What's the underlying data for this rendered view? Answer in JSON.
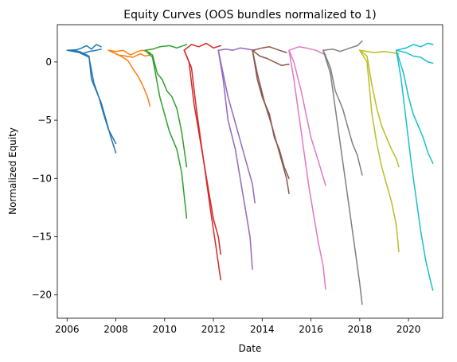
{
  "chart_data": {
    "type": "line",
    "title": "Equity Curves (OOS bundles normalized to 1)",
    "xlabel": "Date",
    "ylabel": "Normalized Equity",
    "xlim": [
      2005.6,
      2021.4
    ],
    "ylim": [
      -22,
      3.2
    ],
    "xticks": [
      {
        "value": 2006,
        "label": "2006"
      },
      {
        "value": 2008,
        "label": "2008"
      },
      {
        "value": 2010,
        "label": "2010"
      },
      {
        "value": 2012,
        "label": "2012"
      },
      {
        "value": 2014,
        "label": "2014"
      },
      {
        "value": 2016,
        "label": "2016"
      },
      {
        "value": 2018,
        "label": "2018"
      },
      {
        "value": 2020,
        "label": "2020"
      }
    ],
    "yticks": [
      {
        "value": 0,
        "label": "0"
      },
      {
        "value": -5,
        "label": "−5"
      },
      {
        "value": -10,
        "label": "−10"
      },
      {
        "value": -15,
        "label": "−15"
      },
      {
        "value": -20,
        "label": "−20"
      }
    ],
    "grid": false,
    "legend": "none",
    "groups": [
      {
        "color": "#1f77b4",
        "lines": [
          {
            "x": [
              2006.0,
              2006.4,
              2006.6,
              2006.8,
              2007.0,
              2007.2,
              2007.4
            ],
            "y": [
              1.0,
              1.05,
              1.2,
              1.4,
              1.1,
              1.5,
              1.3
            ]
          },
          {
            "x": [
              2006.0,
              2006.4,
              2006.6,
              2006.9,
              2007.2,
              2007.4
            ],
            "y": [
              1.0,
              0.95,
              0.7,
              0.9,
              1.0,
              1.1
            ]
          },
          {
            "x": [
              2006.0,
              2006.5,
              2006.9,
              2007.0,
              2007.2,
              2007.4,
              2007.6,
              2007.8,
              2008.0
            ],
            "y": [
              1.0,
              0.9,
              0.5,
              -1.5,
              -2.5,
              -3.5,
              -5.0,
              -6.5,
              -7.8
            ]
          },
          {
            "x": [
              2006.0,
              2006.5,
              2006.9,
              2007.1,
              2007.3,
              2007.5,
              2007.7,
              2008.0
            ],
            "y": [
              1.0,
              0.8,
              0.4,
              -1.8,
              -3.0,
              -4.5,
              -5.8,
              -7.0
            ]
          }
        ]
      },
      {
        "color": "#ff7f0e",
        "lines": [
          {
            "x": [
              2007.7,
              2008.0,
              2008.3,
              2008.6,
              2008.9,
              2009.1,
              2009.4
            ],
            "y": [
              1.0,
              0.9,
              1.0,
              0.6,
              0.9,
              1.0,
              0.8
            ]
          },
          {
            "x": [
              2007.7,
              2008.1,
              2008.4,
              2008.7,
              2009.0,
              2009.2,
              2009.4
            ],
            "y": [
              1.0,
              0.6,
              0.5,
              0.4,
              0.7,
              0.5,
              0.6
            ]
          },
          {
            "x": [
              2007.7,
              2008.2,
              2008.5,
              2008.7,
              2008.9,
              2009.1,
              2009.3,
              2009.4
            ],
            "y": [
              1.0,
              0.5,
              0.1,
              -0.6,
              -1.2,
              -2.0,
              -3.0,
              -3.8
            ]
          }
        ]
      },
      {
        "color": "#2ca02c",
        "lines": [
          {
            "x": [
              2009.2,
              2009.5,
              2009.8,
              2010.2,
              2010.5,
              2010.9
            ],
            "y": [
              1.0,
              1.1,
              1.3,
              1.4,
              1.2,
              1.5
            ]
          },
          {
            "x": [
              2009.2,
              2009.5,
              2009.7,
              2009.9,
              2010.1,
              2010.3,
              2010.5,
              2010.7,
              2010.9
            ],
            "y": [
              1.0,
              0.6,
              -1.0,
              -1.5,
              -2.5,
              -3.0,
              -4.0,
              -6.0,
              -9.0
            ]
          },
          {
            "x": [
              2009.2,
              2009.5,
              2009.8,
              2010.0,
              2010.2,
              2010.5,
              2010.7,
              2010.9
            ],
            "y": [
              1.0,
              0.4,
              -3.0,
              -4.5,
              -6.0,
              -7.5,
              -9.5,
              -13.4
            ]
          }
        ]
      },
      {
        "color": "#d62728",
        "lines": [
          {
            "x": [
              2010.8,
              2011.1,
              2011.4,
              2011.7,
              2012.0,
              2012.3
            ],
            "y": [
              1.0,
              1.5,
              1.3,
              1.6,
              1.2,
              1.4
            ]
          },
          {
            "x": [
              2010.8,
              2011.0,
              2011.2,
              2011.4,
              2011.6,
              2011.8,
              2012.0,
              2012.2,
              2012.3
            ],
            "y": [
              1.0,
              0.0,
              -3.5,
              -6.0,
              -8.5,
              -11.0,
              -13.5,
              -15.0,
              -16.5
            ]
          },
          {
            "x": [
              2010.8,
              2011.1,
              2011.3,
              2011.5,
              2011.7,
              2011.9,
              2012.1,
              2012.3
            ],
            "y": [
              1.0,
              -0.5,
              -4.0,
              -7.0,
              -10.0,
              -13.0,
              -15.8,
              -18.7
            ]
          }
        ]
      },
      {
        "color": "#9467bd",
        "lines": [
          {
            "x": [
              2012.2,
              2012.5,
              2012.8,
              2013.1,
              2013.4,
              2013.7
            ],
            "y": [
              1.0,
              1.1,
              1.0,
              1.2,
              1.1,
              1.0
            ]
          },
          {
            "x": [
              2012.2,
              2012.4,
              2012.6,
              2012.8,
              2013.0,
              2013.2,
              2013.4,
              2013.6,
              2013.7
            ],
            "y": [
              1.0,
              -1.0,
              -3.0,
              -4.5,
              -6.0,
              -7.5,
              -9.0,
              -10.5,
              -12.1
            ]
          },
          {
            "x": [
              2012.2,
              2012.4,
              2012.6,
              2012.9,
              2013.1,
              2013.3,
              2013.5,
              2013.6
            ],
            "y": [
              1.0,
              -1.5,
              -5.0,
              -7.5,
              -10.0,
              -12.5,
              -15.0,
              -17.8
            ]
          }
        ]
      },
      {
        "color": "#8c564b",
        "lines": [
          {
            "x": [
              2013.6,
              2014.0,
              2014.3,
              2014.7,
              2015.0
            ],
            "y": [
              1.0,
              1.2,
              1.3,
              1.0,
              0.8
            ]
          },
          {
            "x": [
              2013.6,
              2013.9,
              2014.2,
              2014.5,
              2014.8,
              2015.1
            ],
            "y": [
              1.0,
              0.5,
              0.3,
              0.0,
              -0.3,
              -0.2
            ]
          },
          {
            "x": [
              2013.6,
              2013.8,
              2014.0,
              2014.3,
              2014.5,
              2014.7,
              2014.9,
              2015.1
            ],
            "y": [
              1.0,
              -1.5,
              -3.0,
              -4.5,
              -6.5,
              -7.5,
              -9.0,
              -10.0
            ]
          },
          {
            "x": [
              2013.6,
              2013.8,
              2014.1,
              2014.4,
              2014.6,
              2014.8,
              2015.0,
              2015.1
            ],
            "y": [
              1.0,
              -1.0,
              -3.5,
              -5.5,
              -7.0,
              -8.5,
              -10.0,
              -11.3
            ]
          }
        ]
      },
      {
        "color": "#e377c2",
        "lines": [
          {
            "x": [
              2015.1,
              2015.5,
              2015.8,
              2016.2,
              2016.6
            ],
            "y": [
              1.0,
              1.3,
              1.2,
              1.0,
              0.6
            ]
          },
          {
            "x": [
              2015.1,
              2015.3,
              2015.6,
              2015.8,
              2016.0,
              2016.3,
              2016.6
            ],
            "y": [
              1.0,
              0.0,
              -2.5,
              -4.5,
              -6.5,
              -8.5,
              -10.6
            ]
          },
          {
            "x": [
              2015.1,
              2015.3,
              2015.5,
              2015.7,
              2015.9,
              2016.1,
              2016.3,
              2016.5,
              2016.6
            ],
            "y": [
              1.0,
              -1.5,
              -4.5,
              -7.5,
              -10.5,
              -13.0,
              -15.5,
              -17.5,
              -19.5
            ]
          }
        ]
      },
      {
        "color": "#7f7f7f",
        "lines": [
          {
            "x": [
              2016.5,
              2016.9,
              2017.2,
              2017.6,
              2017.9,
              2018.1
            ],
            "y": [
              1.0,
              1.1,
              0.9,
              1.2,
              1.4,
              1.8
            ]
          },
          {
            "x": [
              2016.5,
              2016.8,
              2017.0,
              2017.3,
              2017.5,
              2017.7,
              2017.9,
              2018.1
            ],
            "y": [
              1.0,
              -0.5,
              -2.5,
              -4.0,
              -5.5,
              -7.0,
              -8.0,
              -9.7
            ]
          },
          {
            "x": [
              2016.5,
              2016.8,
              2017.0,
              2017.2,
              2017.4,
              2017.6,
              2017.8,
              2018.0,
              2018.1
            ],
            "y": [
              1.0,
              -1.0,
              -4.0,
              -7.0,
              -10.0,
              -13.0,
              -16.0,
              -19.0,
              -20.8
            ]
          }
        ]
      },
      {
        "color": "#bcbd22",
        "lines": [
          {
            "x": [
              2018.0,
              2018.3,
              2018.6,
              2019.0,
              2019.3,
              2019.6
            ],
            "y": [
              1.0,
              0.9,
              0.8,
              0.9,
              0.8,
              0.7
            ]
          },
          {
            "x": [
              2018.0,
              2018.3,
              2018.5,
              2018.7,
              2018.9,
              2019.1,
              2019.3,
              2019.5,
              2019.6
            ],
            "y": [
              1.0,
              0.5,
              -2.0,
              -4.0,
              -5.5,
              -6.5,
              -7.5,
              -8.3,
              -9.0
            ]
          },
          {
            "x": [
              2018.0,
              2018.3,
              2018.5,
              2018.7,
              2018.9,
              2019.1,
              2019.3,
              2019.5,
              2019.6
            ],
            "y": [
              1.0,
              0.0,
              -4.5,
              -7.0,
              -9.0,
              -10.5,
              -12.0,
              -14.0,
              -16.3
            ]
          }
        ]
      },
      {
        "color": "#17becf",
        "lines": [
          {
            "x": [
              2019.5,
              2019.9,
              2020.2,
              2020.5,
              2020.8,
              2021.0
            ],
            "y": [
              1.0,
              1.2,
              1.5,
              1.3,
              1.6,
              1.5
            ]
          },
          {
            "x": [
              2019.5,
              2019.9,
              2020.2,
              2020.5,
              2020.8,
              2021.0
            ],
            "y": [
              1.0,
              0.8,
              0.5,
              0.4,
              0.0,
              -0.1
            ]
          },
          {
            "x": [
              2019.5,
              2019.8,
              2020.0,
              2020.2,
              2020.4,
              2020.6,
              2020.8,
              2021.0
            ],
            "y": [
              1.0,
              -1.0,
              -3.0,
              -4.5,
              -5.5,
              -6.5,
              -7.8,
              -8.7
            ]
          },
          {
            "x": [
              2019.5,
              2019.7,
              2019.9,
              2020.1,
              2020.3,
              2020.5,
              2020.7,
              2020.9,
              2021.0
            ],
            "y": [
              1.0,
              -1.5,
              -5.0,
              -8.5,
              -11.5,
              -14.5,
              -17.0,
              -18.8,
              -19.6
            ]
          }
        ]
      }
    ]
  }
}
